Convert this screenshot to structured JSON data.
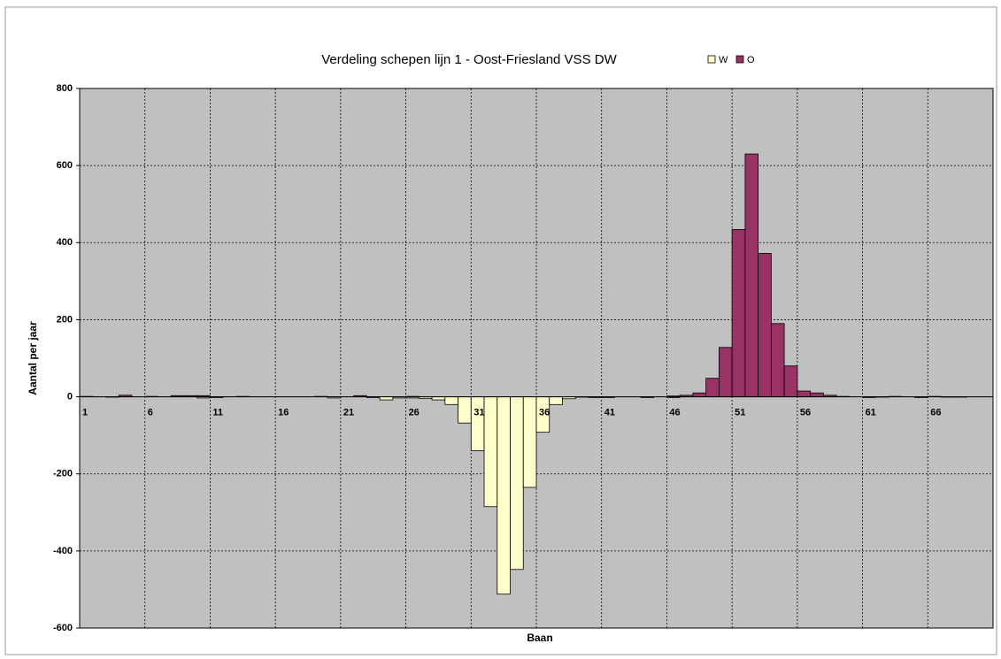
{
  "chart_data": {
    "type": "bar",
    "title": "Verdeling schepen lijn 1 - Oost-Friesland VSS DW",
    "x_label": "Baan",
    "y_label": "Aantal per jaar",
    "categories": [
      "1",
      null,
      null,
      null,
      null,
      "6",
      null,
      null,
      null,
      null,
      "11",
      null,
      null,
      null,
      null,
      "16",
      null,
      null,
      null,
      null,
      "21",
      null,
      null,
      null,
      null,
      "26",
      null,
      null,
      null,
      null,
      "31",
      null,
      null,
      null,
      null,
      "36",
      null,
      null,
      null,
      null,
      "41",
      null,
      null,
      null,
      null,
      "46",
      null,
      null,
      null,
      null,
      "51",
      null,
      null,
      null,
      null,
      "56",
      null,
      null,
      null,
      null,
      "61",
      null,
      null,
      null,
      null,
      "66",
      null,
      null,
      null,
      null
    ],
    "series": [
      {
        "name": "W",
        "color": "#ffffcc",
        "values": [
          0,
          0,
          -1,
          0,
          0,
          0,
          0,
          0,
          0,
          -3,
          -2,
          0,
          0,
          0,
          0,
          0,
          0,
          0,
          0,
          -3,
          0,
          0,
          -2,
          -8,
          -3,
          -3,
          -4,
          -8,
          -20,
          -68,
          -140,
          -285,
          -512,
          -448,
          -235,
          -92,
          -20,
          -5,
          -1,
          -2,
          -2,
          0,
          0,
          -2,
          0,
          -2,
          0,
          0,
          0,
          0,
          0,
          0,
          0,
          0,
          0,
          0,
          0,
          0,
          0,
          0,
          -2,
          -1,
          0,
          0,
          -2,
          0,
          -1,
          -1,
          0,
          0
        ]
      },
      {
        "name": "O",
        "color": "#993366",
        "values": [
          1,
          0,
          0,
          4,
          0,
          1,
          0,
          3,
          3,
          3,
          0,
          0,
          1,
          0,
          0,
          0,
          0,
          0,
          1,
          0,
          0,
          3,
          0,
          0,
          0,
          1,
          0,
          0,
          0,
          0,
          0,
          0,
          0,
          0,
          0,
          0,
          0,
          0,
          0,
          0,
          0,
          0,
          0,
          0,
          0,
          2,
          4,
          10,
          48,
          128,
          434,
          630,
          372,
          190,
          80,
          15,
          10,
          4,
          1,
          0,
          0,
          0,
          1,
          0,
          0,
          1,
          0,
          0,
          0,
          0
        ]
      }
    ],
    "ylim": [
      -600,
      800
    ],
    "yticks": [
      -600,
      -400,
      -200,
      0,
      200,
      400,
      600,
      800
    ],
    "grid": true,
    "legend": "top"
  }
}
